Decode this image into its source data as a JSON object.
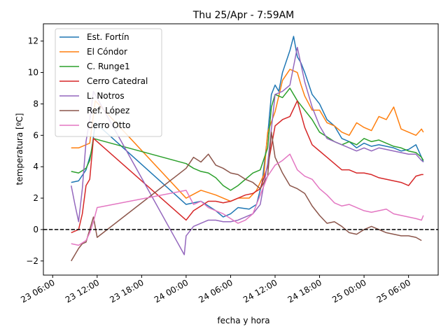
{
  "chart_data": {
    "type": "line",
    "title": "Thu 25/Apr - 7:59AM",
    "xlabel": "fecha y hora",
    "ylabel": "temperatura [ºC]",
    "xlim": [
      "23 04:45",
      "25 10:00"
    ],
    "ylim": [
      -2.9,
      13.1
    ],
    "x_ticks": [
      "23 06:00",
      "23 12:00",
      "23 18:00",
      "24 00:00",
      "24 06:00",
      "24 12:00",
      "24 18:00",
      "25 00:00",
      "25 06:00"
    ],
    "y_ticks": [
      -2,
      0,
      2,
      4,
      6,
      8,
      10,
      12
    ],
    "reference_line": {
      "y": 0,
      "style": "dashed",
      "color": "#000000"
    },
    "legend_position": "upper-left",
    "series": [
      {
        "name": "Est. Fortín",
        "color": "#1f77b4",
        "x": [
          "23 08:30",
          "23 09:30",
          "23 10:30",
          "23 11:15",
          "23 11:45",
          "24 00:00",
          "24 02:00",
          "24 04:00",
          "24 05:00",
          "24 06:00",
          "24 07:00",
          "24 08:30",
          "24 09:30",
          "24 10:15",
          "24 11:00",
          "24 11:30",
          "24 12:00",
          "24 12:30",
          "24 13:00",
          "24 14:00",
          "24 14:30",
          "24 15:00",
          "24 15:30",
          "24 16:00",
          "24 17:00",
          "24 18:00",
          "24 19:00",
          "24 20:00",
          "24 21:00",
          "24 22:00",
          "24 23:00",
          "25 00:00",
          "25 01:00",
          "25 02:00",
          "25 03:00",
          "25 04:00",
          "25 05:00",
          "25 06:00",
          "25 07:00",
          "25 07:45",
          "25 08:00"
        ],
        "y": [
          3.0,
          3.1,
          3.8,
          5.0,
          6.8,
          1.6,
          1.8,
          1.2,
          0.8,
          1.0,
          1.4,
          1.3,
          1.6,
          3.0,
          6.0,
          8.6,
          9.2,
          8.8,
          10.0,
          11.4,
          12.3,
          11.0,
          10.6,
          10.0,
          8.6,
          8.0,
          7.0,
          6.6,
          5.8,
          5.6,
          5.2,
          5.5,
          5.3,
          5.4,
          5.3,
          5.2,
          5.0,
          5.1,
          5.4,
          4.6,
          4.3
        ]
      },
      {
        "name": "El Cóndor",
        "color": "#ff7f0e",
        "x": [
          "23 08:30",
          "23 09:30",
          "23 10:00",
          "23 11:00",
          "23 11:45",
          "24 00:00",
          "24 02:00",
          "24 04:00",
          "24 05:00",
          "24 06:00",
          "24 07:00",
          "24 08:30",
          "24 09:30",
          "24 10:30",
          "24 11:00",
          "24 12:00",
          "24 12:30",
          "24 13:00",
          "24 14:00",
          "24 15:00",
          "24 15:30",
          "24 16:00",
          "24 17:00",
          "24 18:00",
          "24 19:00",
          "24 20:00",
          "24 21:00",
          "24 22:00",
          "24 23:00",
          "25 00:00",
          "25 01:00",
          "25 02:00",
          "25 03:00",
          "25 04:00",
          "25 05:00",
          "25 06:00",
          "25 07:00",
          "25 07:45",
          "25 08:00"
        ],
        "y": [
          5.2,
          5.2,
          5.3,
          5.5,
          8.2,
          2.0,
          2.5,
          2.2,
          2.0,
          1.8,
          2.0,
          2.0,
          2.5,
          3.5,
          6.2,
          7.5,
          8.5,
          9.5,
          10.2,
          10.0,
          9.2,
          8.5,
          7.6,
          7.6,
          6.8,
          6.6,
          6.2,
          6.0,
          6.8,
          6.5,
          6.3,
          7.2,
          7.0,
          7.8,
          6.4,
          6.2,
          6.0,
          6.4,
          6.2
        ]
      },
      {
        "name": "C. Runge1",
        "color": "#2ca02c",
        "x": [
          "23 08:30",
          "23 09:30",
          "23 10:30",
          "23 11:00",
          "23 11:30",
          "24 00:00",
          "24 01:00",
          "24 02:00",
          "24 03:00",
          "24 04:00",
          "24 05:00",
          "24 06:00",
          "24 07:00",
          "24 08:00",
          "24 09:00",
          "24 10:00",
          "24 11:00",
          "24 11:30",
          "24 12:00",
          "24 13:00",
          "24 14:00",
          "24 15:00",
          "24 16:00",
          "24 17:00",
          "24 18:00",
          "24 19:00",
          "24 20:00",
          "24 21:00",
          "24 22:00",
          "24 23:00",
          "25 00:00",
          "25 01:00",
          "25 02:00",
          "25 03:00",
          "25 04:00",
          "25 05:00",
          "25 06:00",
          "25 07:00",
          "25 07:45",
          "25 08:00"
        ],
        "y": [
          3.7,
          3.6,
          3.9,
          4.4,
          5.8,
          4.2,
          3.9,
          3.7,
          3.6,
          3.3,
          2.8,
          2.5,
          2.8,
          3.2,
          3.6,
          3.8,
          5.2,
          7.8,
          8.6,
          8.4,
          9.0,
          8.2,
          7.6,
          7.0,
          6.2,
          5.9,
          5.6,
          5.4,
          5.6,
          5.4,
          5.8,
          5.6,
          5.7,
          5.5,
          5.3,
          5.2,
          5.0,
          4.9,
          4.6,
          4.4
        ]
      },
      {
        "name": "Cerro Catedral",
        "color": "#d62728",
        "x": [
          "23 08:30",
          "23 09:00",
          "23 09:30",
          "23 10:00",
          "23 10:30",
          "23 11:00",
          "23 11:30",
          "23 12:00",
          "24 00:00",
          "24 01:00",
          "24 02:00",
          "24 03:00",
          "24 04:00",
          "24 05:00",
          "24 06:00",
          "24 07:00",
          "24 08:00",
          "24 09:00",
          "24 10:00",
          "24 11:00",
          "24 12:00",
          "24 13:00",
          "24 14:00",
          "24 15:00",
          "24 16:00",
          "24 17:00",
          "24 18:00",
          "24 19:00",
          "24 20:00",
          "24 21:00",
          "24 22:00",
          "24 23:00",
          "25 00:00",
          "25 01:00",
          "25 02:00",
          "25 03:00",
          "25 04:00",
          "25 05:00",
          "25 06:00",
          "25 07:00",
          "25 07:45",
          "25 08:00"
        ],
        "y": [
          -0.2,
          -0.1,
          0.0,
          1.0,
          2.8,
          3.2,
          5.8,
          5.6,
          0.6,
          1.2,
          1.5,
          1.8,
          1.8,
          1.7,
          1.8,
          2.0,
          2.2,
          2.3,
          2.6,
          4.0,
          6.6,
          7.0,
          7.2,
          8.2,
          6.5,
          5.4,
          5.0,
          4.6,
          4.2,
          3.8,
          3.8,
          3.6,
          3.6,
          3.5,
          3.3,
          3.2,
          3.1,
          3.0,
          2.8,
          3.4,
          3.5,
          3.5
        ]
      },
      {
        "name": "L. Notros",
        "color": "#9467bd",
        "x": [
          "23 08:30",
          "23 09:00",
          "23 09:30",
          "23 10:00",
          "23 10:30",
          "23 11:00",
          "23 11:30",
          "23 23:45",
          "24 00:00",
          "24 01:00",
          "24 02:00",
          "24 03:00",
          "24 04:00",
          "24 05:00",
          "24 06:00",
          "24 07:00",
          "24 08:00",
          "24 09:00",
          "24 10:00",
          "24 11:00",
          "24 12:00",
          "24 13:00",
          "24 14:00",
          "24 15:00",
          "24 16:00",
          "24 17:00",
          "24 18:00",
          "24 19:00",
          "24 20:00",
          "24 21:00",
          "24 22:00",
          "24 23:00",
          "25 00:00",
          "25 01:00",
          "25 02:00",
          "25 03:00",
          "25 04:00",
          "25 05:00",
          "25 06:00",
          "25 07:00",
          "25 07:45",
          "25 08:00"
        ],
        "y": [
          2.8,
          1.6,
          0.5,
          2.6,
          5.6,
          7.0,
          8.8,
          -1.6,
          -0.4,
          0.2,
          0.4,
          0.6,
          0.6,
          0.5,
          0.5,
          0.6,
          0.8,
          1.0,
          1.6,
          4.2,
          8.6,
          8.8,
          9.2,
          11.6,
          9.4,
          7.8,
          6.6,
          5.8,
          5.6,
          5.4,
          5.2,
          5.0,
          5.2,
          5.0,
          5.2,
          5.1,
          5.0,
          4.9,
          4.8,
          4.8,
          4.4,
          4.3
        ]
      },
      {
        "name": "Ref. López",
        "color": "#8c564b",
        "x": [
          "23 08:30",
          "23 09:00",
          "23 09:30",
          "23 10:00",
          "23 10:30",
          "23 11:00",
          "23 11:30",
          "23 12:00",
          "24 00:00",
          "24 01:00",
          "24 02:00",
          "24 03:00",
          "24 04:00",
          "24 05:00",
          "24 06:00",
          "24 07:00",
          "24 08:00",
          "24 09:00",
          "24 10:00",
          "24 11:00",
          "24 11:30",
          "24 12:00",
          "24 13:00",
          "24 14:00",
          "24 15:00",
          "24 16:00",
          "24 17:00",
          "24 18:00",
          "24 19:00",
          "24 20:00",
          "24 21:00",
          "24 22:00",
          "24 23:00",
          "25 00:00",
          "25 01:00",
          "25 02:00",
          "25 03:00",
          "25 04:00",
          "25 05:00",
          "25 06:00",
          "25 07:00",
          "25 07:45"
        ],
        "y": [
          -2.0,
          -1.6,
          -1.2,
          -0.9,
          -0.8,
          0.0,
          0.8,
          -0.5,
          3.9,
          4.6,
          4.3,
          4.8,
          4.1,
          3.9,
          3.6,
          3.5,
          3.2,
          3.0,
          2.6,
          3.4,
          6.2,
          4.6,
          3.6,
          2.8,
          2.6,
          2.3,
          1.5,
          0.9,
          0.4,
          0.5,
          0.2,
          -0.2,
          -0.3,
          0.0,
          0.2,
          0.0,
          -0.2,
          -0.3,
          -0.4,
          -0.4,
          -0.5,
          -0.7
        ]
      },
      {
        "name": "Cerro Otto",
        "color": "#e377c2",
        "x": [
          "23 08:30",
          "23 09:30",
          "23 10:30",
          "23 11:00",
          "23 11:30",
          "23 12:00",
          "24 00:00",
          "24 01:00",
          "24 02:00",
          "24 03:00",
          "24 04:00",
          "24 05:00",
          "24 06:00",
          "24 07:00",
          "24 08:00",
          "24 09:00",
          "24 10:00",
          "24 11:00",
          "24 12:00",
          "24 13:00",
          "24 14:00",
          "24 15:00",
          "24 16:00",
          "24 17:00",
          "24 18:00",
          "24 19:00",
          "24 20:00",
          "24 21:00",
          "24 22:00",
          "24 23:00",
          "25 00:00",
          "25 01:00",
          "25 02:00",
          "25 03:00",
          "25 04:00",
          "25 05:00",
          "25 06:00",
          "25 07:00",
          "25 07:45",
          "25 08:00"
        ],
        "y": [
          -0.9,
          -1.0,
          -0.7,
          -0.2,
          0.5,
          1.4,
          2.5,
          1.6,
          1.8,
          1.4,
          1.2,
          1.0,
          0.7,
          0.4,
          0.6,
          1.0,
          2.2,
          3.4,
          4.1,
          4.4,
          4.8,
          3.8,
          3.4,
          3.2,
          2.6,
          2.2,
          1.7,
          1.5,
          1.6,
          1.4,
          1.2,
          1.1,
          1.2,
          1.3,
          1.0,
          0.9,
          0.8,
          0.7,
          0.6,
          0.9
        ]
      }
    ]
  }
}
